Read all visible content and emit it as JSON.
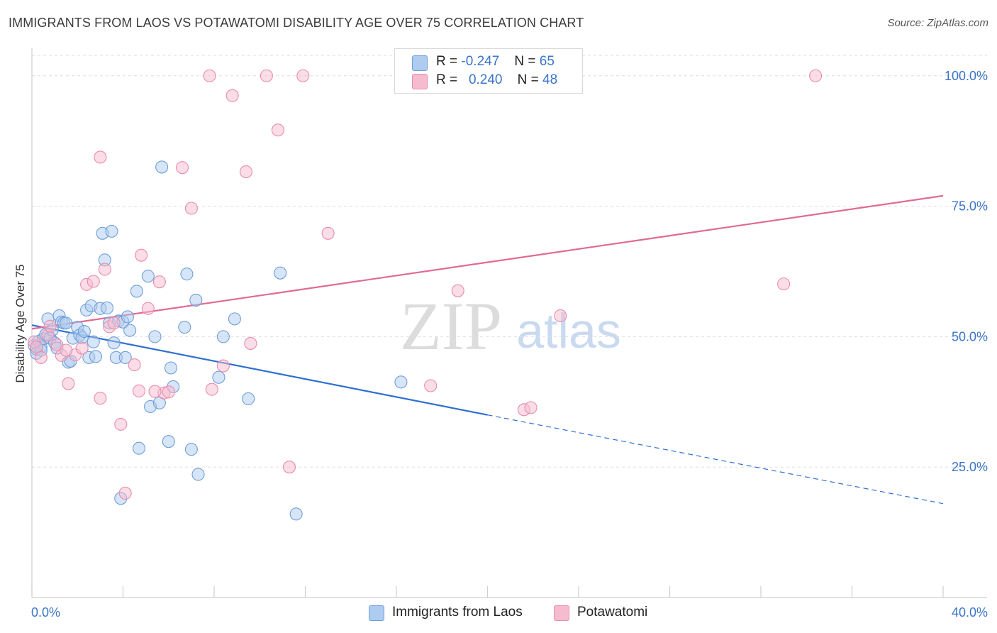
{
  "header": {
    "title": "IMMIGRANTS FROM LAOS VS POTAWATOMI DISABILITY AGE OVER 75 CORRELATION CHART",
    "source": "Source: ZipAtlas.com"
  },
  "watermark": {
    "zip": "ZIP",
    "atlas": "atlas"
  },
  "legend": {
    "r_label": "R =",
    "n_label": "N =",
    "series": [
      {
        "r": "-0.247",
        "n": "65"
      },
      {
        "r": "0.240",
        "n": "48"
      }
    ]
  },
  "colors": {
    "blue_fill": "#aecbf0",
    "blue_stroke": "#6f9fd8",
    "blue_line": "#2f6fd0",
    "pink_fill": "#f5bcd0",
    "pink_stroke": "#e98cab",
    "pink_line": "#e06a93",
    "axis_label": "#3b74c8",
    "grid": "#dedede"
  },
  "chart_data": {
    "type": "scatter",
    "title": "IMMIGRANTS FROM LAOS VS POTAWATOMI DISABILITY AGE OVER 75 CORRELATION CHART",
    "xlabel": "",
    "ylabel": "Disability Age Over 75",
    "xlim": [
      0,
      40
    ],
    "ylim": [
      0,
      105
    ],
    "x_tick_labels": [
      "0.0%",
      "40.0%"
    ],
    "y_ticks": [
      25,
      50,
      75,
      100
    ],
    "y_tick_labels": [
      "25.0%",
      "50.0%",
      "75.0%",
      "100.0%"
    ],
    "grid": "horizontal dashed",
    "legend_position": "top-center and bottom",
    "series": [
      {
        "name": "Immigrants from Laos",
        "color": "#6f9fd8",
        "trend": {
          "x": [
            0,
            20
          ],
          "y": [
            52.2,
            35.0
          ],
          "dashed_extension_to": [
            40,
            18.0
          ]
        },
        "points": [
          [
            0.1,
            48.3
          ],
          [
            0.2,
            47.6
          ],
          [
            0.3,
            49.1
          ],
          [
            0.4,
            48.0
          ],
          [
            0.5,
            49.6
          ],
          [
            0.6,
            50.4
          ],
          [
            0.7,
            53.4
          ],
          [
            0.8,
            49.7
          ],
          [
            0.9,
            51.3
          ],
          [
            1.0,
            48.8
          ],
          [
            1.1,
            47.8
          ],
          [
            1.2,
            54.0
          ],
          [
            1.3,
            52.8
          ],
          [
            1.4,
            52.6
          ],
          [
            1.5,
            52.6
          ],
          [
            1.6,
            45.1
          ],
          [
            1.7,
            45.3
          ],
          [
            1.8,
            49.7
          ],
          [
            2.0,
            51.8
          ],
          [
            2.1,
            50.3
          ],
          [
            2.2,
            49.8
          ],
          [
            2.3,
            51.0
          ],
          [
            2.4,
            55.1
          ],
          [
            2.5,
            46.0
          ],
          [
            2.6,
            55.9
          ],
          [
            2.8,
            46.2
          ],
          [
            2.7,
            49.0
          ],
          [
            3.0,
            55.4
          ],
          [
            3.1,
            69.8
          ],
          [
            3.2,
            64.7
          ],
          [
            3.3,
            55.5
          ],
          [
            3.4,
            52.6
          ],
          [
            3.5,
            70.2
          ],
          [
            3.6,
            48.8
          ],
          [
            3.7,
            46.0
          ],
          [
            3.8,
            53.0
          ],
          [
            4.0,
            52.8
          ],
          [
            4.1,
            46.0
          ],
          [
            4.2,
            53.8
          ],
          [
            4.3,
            51.2
          ],
          [
            4.7,
            28.6
          ],
          [
            4.6,
            58.7
          ],
          [
            5.1,
            61.6
          ],
          [
            5.2,
            36.6
          ],
          [
            5.4,
            50.0
          ],
          [
            5.6,
            37.3
          ],
          [
            5.7,
            82.5
          ],
          [
            6.1,
            44.0
          ],
          [
            6.2,
            40.4
          ],
          [
            6.0,
            29.9
          ],
          [
            6.7,
            51.8
          ],
          [
            6.8,
            62.0
          ],
          [
            7.0,
            28.4
          ],
          [
            7.2,
            57.0
          ],
          [
            7.3,
            23.6
          ],
          [
            8.2,
            42.2
          ],
          [
            8.4,
            50.0
          ],
          [
            8.9,
            53.4
          ],
          [
            9.5,
            38.1
          ],
          [
            10.9,
            62.2
          ],
          [
            11.6,
            16.0
          ],
          [
            16.2,
            41.3
          ],
          [
            3.9,
            19.0
          ],
          [
            0.2,
            46.8
          ],
          [
            0.4,
            47.4
          ]
        ]
      },
      {
        "name": "Potawatomi",
        "color": "#e98cab",
        "trend": {
          "x": [
            0,
            40
          ],
          "y": [
            51.5,
            77.0
          ]
        },
        "points": [
          [
            0.1,
            49.0
          ],
          [
            0.2,
            48.0
          ],
          [
            0.4,
            46.0
          ],
          [
            0.7,
            50.3
          ],
          [
            0.8,
            52.0
          ],
          [
            1.1,
            48.4
          ],
          [
            1.3,
            46.4
          ],
          [
            1.6,
            41.0
          ],
          [
            1.9,
            46.5
          ],
          [
            2.2,
            47.8
          ],
          [
            2.4,
            60.0
          ],
          [
            2.7,
            60.6
          ],
          [
            3.0,
            38.2
          ],
          [
            3.2,
            62.9
          ],
          [
            3.4,
            51.9
          ],
          [
            3.6,
            52.6
          ],
          [
            3.0,
            84.4
          ],
          [
            3.9,
            33.2
          ],
          [
            4.1,
            20.0
          ],
          [
            4.5,
            44.6
          ],
          [
            4.7,
            39.6
          ],
          [
            4.8,
            65.6
          ],
          [
            5.1,
            55.4
          ],
          [
            5.6,
            60.5
          ],
          [
            5.8,
            39.2
          ],
          [
            6.0,
            39.4
          ],
          [
            5.4,
            39.5
          ],
          [
            6.6,
            82.4
          ],
          [
            7.0,
            74.6
          ],
          [
            7.9,
            39.9
          ],
          [
            8.4,
            44.4
          ],
          [
            9.6,
            48.7
          ],
          [
            9.4,
            81.6
          ],
          [
            8.8,
            96.2
          ],
          [
            7.8,
            100.0
          ],
          [
            10.3,
            100.0
          ],
          [
            11.9,
            100.0
          ],
          [
            10.8,
            89.6
          ],
          [
            11.3,
            25.0
          ],
          [
            13.0,
            69.8
          ],
          [
            17.5,
            40.6
          ],
          [
            18.7,
            58.8
          ],
          [
            21.6,
            36.0
          ],
          [
            21.9,
            36.4
          ],
          [
            23.2,
            54.0
          ],
          [
            33.0,
            60.1
          ],
          [
            34.4,
            100.0
          ],
          [
            1.5,
            47.4
          ]
        ]
      }
    ]
  }
}
